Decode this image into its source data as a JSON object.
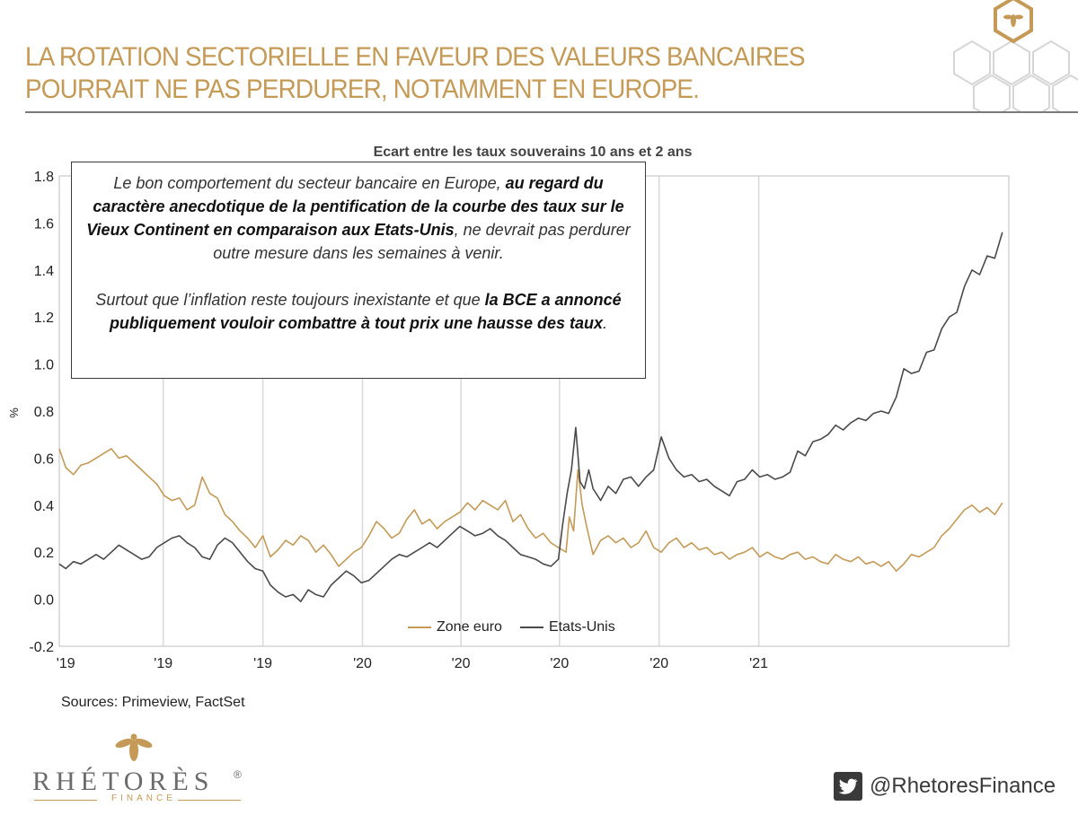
{
  "slide": {
    "title_line1": "LA ROTATION SECTORIELLE EN FAVEUR DES VALEURS BANCAIRES",
    "title_line2": "POURRAIT NE PAS PERDURER, NOTAMMENT EN EUROPE.",
    "sources": "Sources: Primeview, FactSet",
    "twitter_handle": "@RhetoresFinance",
    "logo": {
      "name": "RHÉTORÈS",
      "reg": "®",
      "sub": "FINANCE"
    }
  },
  "callout": {
    "p1_a": "Le bon comportement du secteur bancaire en Europe, ",
    "p1_b": "au regard du caractère anecdotique de la pentification de la courbe des taux sur le Vieux Continent en comparaison aux Etats-Unis",
    "p1_c": ", ne devrait pas perdurer outre mesure dans les semaines à venir.",
    "p2_a": "Surtout que l’inflation reste toujours inexistante et que ",
    "p2_b": "la BCE a annoncé publiquement vouloir combattre à tout prix une hausse des taux",
    "p2_c": "."
  },
  "colors": {
    "gold": "#C49A56",
    "us_line": "#4a4a4a",
    "grid": "#d9d9d9",
    "twitter_box": "#3a3a3a"
  },
  "chart_data": {
    "type": "line",
    "title": "Ecart entre les taux souverains 10 ans et 2 ans",
    "ylabel": "%",
    "xlabel": "",
    "ylim": [
      -0.2,
      1.8
    ],
    "yticks": [
      "1.8",
      "1.6",
      "1.4",
      "1.2",
      "1.0",
      "0.8",
      "0.6",
      "0.4",
      "0.2",
      "0.0",
      "-0.2"
    ],
    "xticks": [
      "'19",
      "'19",
      "'19",
      "'20",
      "'20",
      "'20",
      "'20",
      "'21"
    ],
    "xlim": [
      "2018-11-25",
      "2021-04-20"
    ],
    "xtick_dates": [
      "2018-12-01",
      "2019-03-01",
      "2019-06-01",
      "2019-09-01",
      "2019-12-01",
      "2020-03-01",
      "2020-06-01",
      "2020-09-01"
    ],
    "vgrid_dates": [
      "2019-03-01",
      "2019-06-01",
      "2019-09-01",
      "2019-12-01",
      "2020-03-01",
      "2020-06-01",
      "2020-09-01"
    ],
    "grid": true,
    "legend_position": "bottom-center",
    "series": [
      {
        "name": "Zone euro",
        "color": "#C49A56",
        "points": [
          [
            "2018-11-25",
            0.64
          ],
          [
            "2018-12-01",
            0.56
          ],
          [
            "2018-12-08",
            0.53
          ],
          [
            "2018-12-15",
            0.57
          ],
          [
            "2018-12-22",
            0.58
          ],
          [
            "2018-12-29",
            0.6
          ],
          [
            "2019-01-05",
            0.62
          ],
          [
            "2019-01-12",
            0.64
          ],
          [
            "2019-01-19",
            0.6
          ],
          [
            "2019-01-26",
            0.61
          ],
          [
            "2019-02-02",
            0.58
          ],
          [
            "2019-02-09",
            0.55
          ],
          [
            "2019-02-16",
            0.52
          ],
          [
            "2019-02-23",
            0.49
          ],
          [
            "2019-03-02",
            0.44
          ],
          [
            "2019-03-09",
            0.42
          ],
          [
            "2019-03-16",
            0.43
          ],
          [
            "2019-03-23",
            0.38
          ],
          [
            "2019-03-30",
            0.4
          ],
          [
            "2019-04-06",
            0.52
          ],
          [
            "2019-04-13",
            0.45
          ],
          [
            "2019-04-20",
            0.43
          ],
          [
            "2019-04-27",
            0.36
          ],
          [
            "2019-05-04",
            0.33
          ],
          [
            "2019-05-11",
            0.29
          ],
          [
            "2019-05-18",
            0.26
          ],
          [
            "2019-05-25",
            0.22
          ],
          [
            "2019-06-01",
            0.27
          ],
          [
            "2019-06-08",
            0.18
          ],
          [
            "2019-06-15",
            0.21
          ],
          [
            "2019-06-22",
            0.25
          ],
          [
            "2019-06-29",
            0.23
          ],
          [
            "2019-07-06",
            0.27
          ],
          [
            "2019-07-13",
            0.25
          ],
          [
            "2019-07-20",
            0.2
          ],
          [
            "2019-07-27",
            0.23
          ],
          [
            "2019-08-03",
            0.19
          ],
          [
            "2019-08-10",
            0.14
          ],
          [
            "2019-08-17",
            0.17
          ],
          [
            "2019-08-24",
            0.2
          ],
          [
            "2019-08-31",
            0.22
          ],
          [
            "2019-09-07",
            0.27
          ],
          [
            "2019-09-14",
            0.33
          ],
          [
            "2019-09-21",
            0.3
          ],
          [
            "2019-09-28",
            0.26
          ],
          [
            "2019-10-05",
            0.28
          ],
          [
            "2019-10-12",
            0.34
          ],
          [
            "2019-10-19",
            0.38
          ],
          [
            "2019-10-26",
            0.32
          ],
          [
            "2019-11-02",
            0.34
          ],
          [
            "2019-11-09",
            0.3
          ],
          [
            "2019-11-16",
            0.33
          ],
          [
            "2019-11-23",
            0.35
          ],
          [
            "2019-11-30",
            0.37
          ],
          [
            "2019-12-07",
            0.41
          ],
          [
            "2019-12-14",
            0.38
          ],
          [
            "2019-12-21",
            0.42
          ],
          [
            "2019-12-28",
            0.4
          ],
          [
            "2020-01-04",
            0.38
          ],
          [
            "2020-01-11",
            0.42
          ],
          [
            "2020-01-18",
            0.33
          ],
          [
            "2020-01-25",
            0.36
          ],
          [
            "2020-02-01",
            0.3
          ],
          [
            "2020-02-08",
            0.26
          ],
          [
            "2020-02-15",
            0.28
          ],
          [
            "2020-02-22",
            0.24
          ],
          [
            "2020-02-29",
            0.22
          ],
          [
            "2020-03-07",
            0.2
          ],
          [
            "2020-03-10",
            0.35
          ],
          [
            "2020-03-14",
            0.29
          ],
          [
            "2020-03-18",
            0.55
          ],
          [
            "2020-03-22",
            0.4
          ],
          [
            "2020-03-26",
            0.31
          ],
          [
            "2020-04-01",
            0.19
          ],
          [
            "2020-04-08",
            0.25
          ],
          [
            "2020-04-15",
            0.27
          ],
          [
            "2020-04-22",
            0.24
          ],
          [
            "2020-04-29",
            0.26
          ],
          [
            "2020-05-06",
            0.22
          ],
          [
            "2020-05-13",
            0.24
          ],
          [
            "2020-05-20",
            0.29
          ],
          [
            "2020-05-27",
            0.22
          ],
          [
            "2020-06-03",
            0.2
          ],
          [
            "2020-06-10",
            0.24
          ],
          [
            "2020-06-17",
            0.26
          ],
          [
            "2020-06-24",
            0.22
          ],
          [
            "2020-07-01",
            0.24
          ],
          [
            "2020-07-08",
            0.21
          ],
          [
            "2020-07-15",
            0.22
          ],
          [
            "2020-07-22",
            0.19
          ],
          [
            "2020-07-29",
            0.2
          ],
          [
            "2020-08-05",
            0.17
          ],
          [
            "2020-08-12",
            0.19
          ],
          [
            "2020-08-19",
            0.2
          ],
          [
            "2020-08-26",
            0.22
          ],
          [
            "2020-09-02",
            0.18
          ],
          [
            "2020-09-09",
            0.2
          ],
          [
            "2020-09-16",
            0.18
          ],
          [
            "2020-09-23",
            0.17
          ],
          [
            "2020-09-30",
            0.19
          ],
          [
            "2020-10-07",
            0.2
          ],
          [
            "2020-10-14",
            0.17
          ],
          [
            "2020-10-21",
            0.18
          ],
          [
            "2020-10-28",
            0.16
          ],
          [
            "2020-11-04",
            0.15
          ],
          [
            "2020-11-11",
            0.19
          ],
          [
            "2020-11-18",
            0.17
          ],
          [
            "2020-11-25",
            0.16
          ],
          [
            "2020-12-02",
            0.18
          ],
          [
            "2020-12-09",
            0.15
          ],
          [
            "2020-12-16",
            0.16
          ],
          [
            "2020-12-23",
            0.14
          ],
          [
            "2020-12-30",
            0.16
          ],
          [
            "2021-01-06",
            0.12
          ],
          [
            "2021-01-13",
            0.15
          ],
          [
            "2021-01-20",
            0.19
          ],
          [
            "2021-01-27",
            0.18
          ],
          [
            "2021-02-03",
            0.2
          ],
          [
            "2021-02-10",
            0.22
          ],
          [
            "2021-02-17",
            0.27
          ],
          [
            "2021-02-24",
            0.3
          ],
          [
            "2021-03-03",
            0.34
          ],
          [
            "2021-03-10",
            0.38
          ],
          [
            "2021-03-17",
            0.4
          ],
          [
            "2021-03-24",
            0.37
          ],
          [
            "2021-03-31",
            0.39
          ],
          [
            "2021-04-07",
            0.36
          ],
          [
            "2021-04-14",
            0.41
          ]
        ]
      },
      {
        "name": "Etats-Unis",
        "color": "#4a4a4a",
        "points": [
          [
            "2018-11-25",
            0.15
          ],
          [
            "2018-12-01",
            0.13
          ],
          [
            "2018-12-08",
            0.16
          ],
          [
            "2018-12-15",
            0.15
          ],
          [
            "2018-12-22",
            0.17
          ],
          [
            "2018-12-29",
            0.19
          ],
          [
            "2019-01-05",
            0.17
          ],
          [
            "2019-01-12",
            0.2
          ],
          [
            "2019-01-19",
            0.23
          ],
          [
            "2019-01-26",
            0.21
          ],
          [
            "2019-02-02",
            0.19
          ],
          [
            "2019-02-09",
            0.17
          ],
          [
            "2019-02-16",
            0.18
          ],
          [
            "2019-02-23",
            0.22
          ],
          [
            "2019-03-02",
            0.24
          ],
          [
            "2019-03-09",
            0.26
          ],
          [
            "2019-03-16",
            0.27
          ],
          [
            "2019-03-23",
            0.24
          ],
          [
            "2019-03-30",
            0.22
          ],
          [
            "2019-04-06",
            0.18
          ],
          [
            "2019-04-13",
            0.17
          ],
          [
            "2019-04-20",
            0.23
          ],
          [
            "2019-04-27",
            0.26
          ],
          [
            "2019-05-04",
            0.24
          ],
          [
            "2019-05-11",
            0.2
          ],
          [
            "2019-05-18",
            0.16
          ],
          [
            "2019-05-25",
            0.13
          ],
          [
            "2019-06-01",
            0.12
          ],
          [
            "2019-06-08",
            0.06
          ],
          [
            "2019-06-15",
            0.03
          ],
          [
            "2019-06-22",
            0.01
          ],
          [
            "2019-06-29",
            0.02
          ],
          [
            "2019-07-06",
            -0.01
          ],
          [
            "2019-07-13",
            0.04
          ],
          [
            "2019-07-20",
            0.02
          ],
          [
            "2019-07-27",
            0.01
          ],
          [
            "2019-08-03",
            0.06
          ],
          [
            "2019-08-10",
            0.09
          ],
          [
            "2019-08-17",
            0.12
          ],
          [
            "2019-08-24",
            0.1
          ],
          [
            "2019-08-31",
            0.07
          ],
          [
            "2019-09-07",
            0.08
          ],
          [
            "2019-09-14",
            0.11
          ],
          [
            "2019-09-21",
            0.14
          ],
          [
            "2019-09-28",
            0.17
          ],
          [
            "2019-10-05",
            0.19
          ],
          [
            "2019-10-12",
            0.18
          ],
          [
            "2019-10-19",
            0.2
          ],
          [
            "2019-10-26",
            0.22
          ],
          [
            "2019-11-02",
            0.24
          ],
          [
            "2019-11-09",
            0.22
          ],
          [
            "2019-11-16",
            0.25
          ],
          [
            "2019-11-23",
            0.28
          ],
          [
            "2019-11-30",
            0.31
          ],
          [
            "2019-12-07",
            0.29
          ],
          [
            "2019-12-14",
            0.27
          ],
          [
            "2019-12-21",
            0.28
          ],
          [
            "2019-12-28",
            0.3
          ],
          [
            "2020-01-04",
            0.27
          ],
          [
            "2020-01-11",
            0.25
          ],
          [
            "2020-01-18",
            0.22
          ],
          [
            "2020-01-25",
            0.19
          ],
          [
            "2020-02-01",
            0.18
          ],
          [
            "2020-02-08",
            0.17
          ],
          [
            "2020-02-15",
            0.15
          ],
          [
            "2020-02-22",
            0.14
          ],
          [
            "2020-02-29",
            0.17
          ],
          [
            "2020-03-04",
            0.32
          ],
          [
            "2020-03-08",
            0.45
          ],
          [
            "2020-03-12",
            0.55
          ],
          [
            "2020-03-16",
            0.73
          ],
          [
            "2020-03-20",
            0.5
          ],
          [
            "2020-03-24",
            0.47
          ],
          [
            "2020-03-28",
            0.55
          ],
          [
            "2020-04-01",
            0.47
          ],
          [
            "2020-04-08",
            0.42
          ],
          [
            "2020-04-15",
            0.48
          ],
          [
            "2020-04-22",
            0.45
          ],
          [
            "2020-04-29",
            0.51
          ],
          [
            "2020-05-06",
            0.52
          ],
          [
            "2020-05-13",
            0.48
          ],
          [
            "2020-05-20",
            0.52
          ],
          [
            "2020-05-27",
            0.55
          ],
          [
            "2020-06-03",
            0.69
          ],
          [
            "2020-06-10",
            0.6
          ],
          [
            "2020-06-17",
            0.55
          ],
          [
            "2020-06-24",
            0.52
          ],
          [
            "2020-07-01",
            0.53
          ],
          [
            "2020-07-08",
            0.5
          ],
          [
            "2020-07-15",
            0.51
          ],
          [
            "2020-07-22",
            0.48
          ],
          [
            "2020-07-29",
            0.46
          ],
          [
            "2020-08-05",
            0.44
          ],
          [
            "2020-08-12",
            0.5
          ],
          [
            "2020-08-19",
            0.51
          ],
          [
            "2020-08-26",
            0.55
          ],
          [
            "2020-09-02",
            0.52
          ],
          [
            "2020-09-09",
            0.53
          ],
          [
            "2020-09-16",
            0.51
          ],
          [
            "2020-09-23",
            0.52
          ],
          [
            "2020-09-30",
            0.54
          ],
          [
            "2020-10-07",
            0.63
          ],
          [
            "2020-10-14",
            0.61
          ],
          [
            "2020-10-21",
            0.67
          ],
          [
            "2020-10-28",
            0.68
          ],
          [
            "2020-11-04",
            0.7
          ],
          [
            "2020-11-11",
            0.74
          ],
          [
            "2020-11-18",
            0.72
          ],
          [
            "2020-11-25",
            0.75
          ],
          [
            "2020-12-02",
            0.77
          ],
          [
            "2020-12-09",
            0.76
          ],
          [
            "2020-12-16",
            0.79
          ],
          [
            "2020-12-23",
            0.8
          ],
          [
            "2020-12-30",
            0.79
          ],
          [
            "2021-01-06",
            0.86
          ],
          [
            "2021-01-13",
            0.98
          ],
          [
            "2021-01-20",
            0.96
          ],
          [
            "2021-01-27",
            0.97
          ],
          [
            "2021-02-03",
            1.05
          ],
          [
            "2021-02-10",
            1.06
          ],
          [
            "2021-02-17",
            1.15
          ],
          [
            "2021-02-24",
            1.2
          ],
          [
            "2021-03-03",
            1.22
          ],
          [
            "2021-03-10",
            1.33
          ],
          [
            "2021-03-17",
            1.4
          ],
          [
            "2021-03-24",
            1.38
          ],
          [
            "2021-03-31",
            1.46
          ],
          [
            "2021-04-07",
            1.45
          ],
          [
            "2021-04-14",
            1.56
          ]
        ]
      }
    ]
  }
}
